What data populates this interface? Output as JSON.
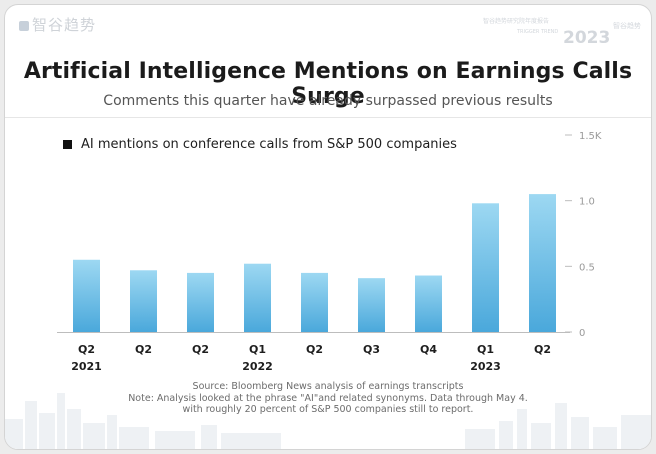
{
  "brand": {
    "name": "智谷趋势"
  },
  "corner_logo": {
    "line1": "智谷趋势研究院年度报告",
    "line2": "TRIGGER TREND",
    "year": "2023",
    "badge": "智谷趋势"
  },
  "header": {
    "title": "Artificial Intelligence Mentions on Earnings Calls Surge",
    "subtitle": "Comments this quarter have already surpassed previous results"
  },
  "colors": {
    "bar_top": "#9dd8f2",
    "bar_bottom": "#4aa8db",
    "axis": "#bdbdbd"
  },
  "chart_data": {
    "type": "bar",
    "legend": "AI mentions on conference calls from S&P 500 companies",
    "categories": [
      "Q2 2021",
      "Q2",
      "Q2",
      "Q1 2022",
      "Q2",
      "Q3",
      "Q4",
      "Q1 2023",
      "Q2"
    ],
    "tick_labels": [
      {
        "quarter": "Q2",
        "year": "2021"
      },
      {
        "quarter": "Q2",
        "year": ""
      },
      {
        "quarter": "Q2",
        "year": ""
      },
      {
        "quarter": "Q1",
        "year": "2022"
      },
      {
        "quarter": "Q2",
        "year": ""
      },
      {
        "quarter": "Q3",
        "year": ""
      },
      {
        "quarter": "Q4",
        "year": ""
      },
      {
        "quarter": "Q1",
        "year": "2023"
      },
      {
        "quarter": "Q2",
        "year": ""
      }
    ],
    "values": [
      0.55,
      0.47,
      0.45,
      0.52,
      0.45,
      0.41,
      0.43,
      0.98,
      1.05
    ],
    "ylim": [
      0,
      1.5
    ],
    "yticks": [
      0,
      0.5,
      1.0,
      1.5
    ],
    "ytick_labels": [
      "0",
      "0.5",
      "1.0",
      "1.5K"
    ],
    "y_axis_position": "right",
    "grid": false
  },
  "footer": {
    "source": "Source: Bloomberg News analysis of earnings transcripts",
    "note1": "Note: Analysis looked at the phrase \"AI\"and related synonyms. Data through May 4.",
    "note2": "with roughly 20 percent of S&P 500 companies still to report."
  }
}
